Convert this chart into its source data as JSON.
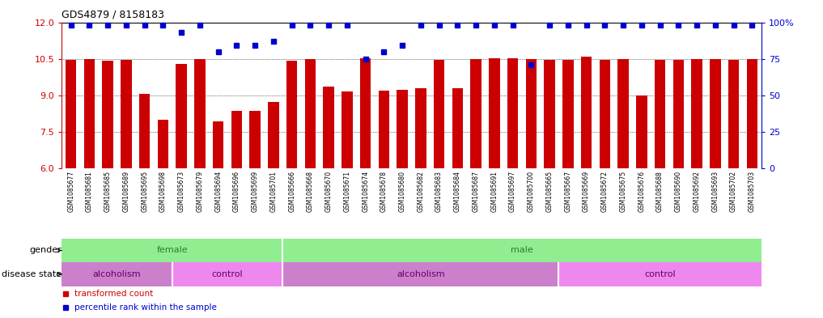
{
  "title": "GDS4879 / 8158183",
  "samples": [
    "GSM1085677",
    "GSM1085681",
    "GSM1085685",
    "GSM1085689",
    "GSM1085695",
    "GSM1085698",
    "GSM1085673",
    "GSM1085679",
    "GSM1085694",
    "GSM1085696",
    "GSM1085699",
    "GSM1085701",
    "GSM1085666",
    "GSM1085668",
    "GSM1085670",
    "GSM1085671",
    "GSM1085674",
    "GSM1085678",
    "GSM1085680",
    "GSM1085682",
    "GSM1085683",
    "GSM1085684",
    "GSM1085687",
    "GSM1085691",
    "GSM1085697",
    "GSM1085700",
    "GSM1085665",
    "GSM1085667",
    "GSM1085669",
    "GSM1085672",
    "GSM1085675",
    "GSM1085676",
    "GSM1085688",
    "GSM1085690",
    "GSM1085692",
    "GSM1085693",
    "GSM1085702",
    "GSM1085703"
  ],
  "bar_values": [
    10.47,
    10.48,
    10.41,
    10.47,
    9.07,
    7.99,
    10.29,
    10.48,
    7.95,
    8.35,
    8.35,
    8.73,
    10.43,
    10.48,
    9.35,
    9.15,
    10.53,
    9.18,
    9.23,
    9.28,
    10.46,
    9.28,
    10.5,
    10.52,
    10.53,
    10.5,
    10.46,
    10.47,
    10.59,
    10.46,
    10.5,
    9.0,
    10.45,
    10.46,
    10.48,
    10.5,
    10.45,
    10.48
  ],
  "percentile_values": [
    98,
    98,
    98,
    98,
    98,
    98,
    93,
    98,
    80,
    84,
    84,
    87,
    98,
    98,
    98,
    98,
    75,
    80,
    84,
    98,
    98,
    98,
    98,
    98,
    98,
    71,
    98,
    98,
    98,
    98,
    98,
    98,
    98,
    98,
    98,
    98,
    98,
    98
  ],
  "bar_color": "#cc0000",
  "percentile_color": "#0000cc",
  "ylim_left": [
    6,
    12
  ],
  "ylim_right": [
    0,
    100
  ],
  "yticks_left": [
    6,
    7.5,
    9,
    10.5,
    12
  ],
  "yticks_right": [
    0,
    25,
    50,
    75,
    100
  ],
  "female_count": 12,
  "disease_boundaries": [
    6,
    12,
    27
  ],
  "disease_labels": [
    "alcoholism",
    "control",
    "alcoholism",
    "control"
  ],
  "disease_starts": [
    0,
    6,
    12,
    27
  ],
  "disease_ends": [
    6,
    12,
    27,
    38
  ],
  "gender_label": "gender",
  "disease_label": "disease state",
  "legend_bar_label": "transformed count",
  "legend_dot_label": "percentile rank within the sample",
  "bar_color_hex": "#cc0000",
  "pct_color_hex": "#0000cc",
  "female_color": "#90ee90",
  "male_color": "#90ee90",
  "alc_color": "#cc80cc",
  "ctrl_color": "#ee88ee",
  "label_color_gender": "#2d7d2d",
  "label_color_disease": "#660066",
  "tick_label_bg": "#d8d8d8"
}
